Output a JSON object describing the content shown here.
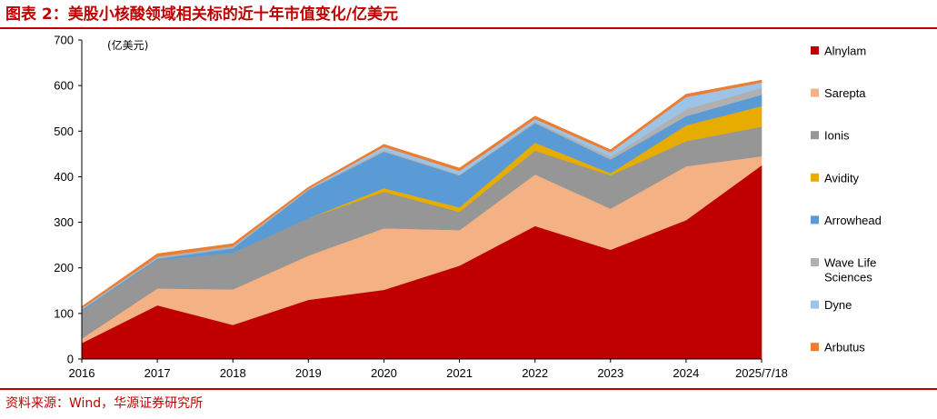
{
  "header": {
    "title": "图表 2：美股小核酸领域相关标的近十年市值变化/亿美元"
  },
  "footer": {
    "source": "资料来源：Wind，华源证券研究所"
  },
  "chart_data": {
    "type": "area",
    "stacked": true,
    "unit_label": "(亿美元)",
    "categories": [
      "2016",
      "2017",
      "2018",
      "2019",
      "2020",
      "2021",
      "2022",
      "2023",
      "2024",
      "2025/7/18"
    ],
    "ylim": [
      0,
      700
    ],
    "yticks": [
      0,
      100,
      200,
      300,
      400,
      500,
      600,
      700
    ],
    "legend_position": "right",
    "series": [
      {
        "name": "Alnylam",
        "color": "#c00000",
        "values": [
          35,
          118,
          75,
          130,
          152,
          205,
          292,
          240,
          305,
          425
        ]
      },
      {
        "name": "Sarepta",
        "color": "#f4b183",
        "values": [
          10,
          37,
          78,
          97,
          135,
          78,
          113,
          90,
          118,
          20
        ]
      },
      {
        "name": "Ionis",
        "color": "#969696",
        "values": [
          60,
          62,
          80,
          82,
          80,
          40,
          52,
          73,
          55,
          65
        ]
      },
      {
        "name": "Avidity",
        "color": "#e6ac00",
        "values": [
          0,
          0,
          0,
          0,
          8,
          10,
          18,
          5,
          35,
          45
        ]
      },
      {
        "name": "Arrowhead",
        "color": "#5b9bd5",
        "values": [
          3,
          3,
          10,
          62,
          80,
          70,
          43,
          30,
          20,
          25
        ]
      },
      {
        "name": "Wave Life Sciences",
        "color": "#b0b0b0",
        "values": [
          4,
          5,
          5,
          3,
          3,
          2,
          3,
          6,
          15,
          15
        ]
      },
      {
        "name": "Dyne",
        "color": "#9dc3e6",
        "values": [
          0,
          0,
          0,
          0,
          8,
          8,
          6,
          10,
          27,
          12
        ]
      },
      {
        "name": "Arbutus",
        "color": "#ed7d31",
        "values": [
          3,
          6,
          5,
          3,
          5,
          6,
          6,
          5,
          6,
          5
        ]
      }
    ]
  }
}
